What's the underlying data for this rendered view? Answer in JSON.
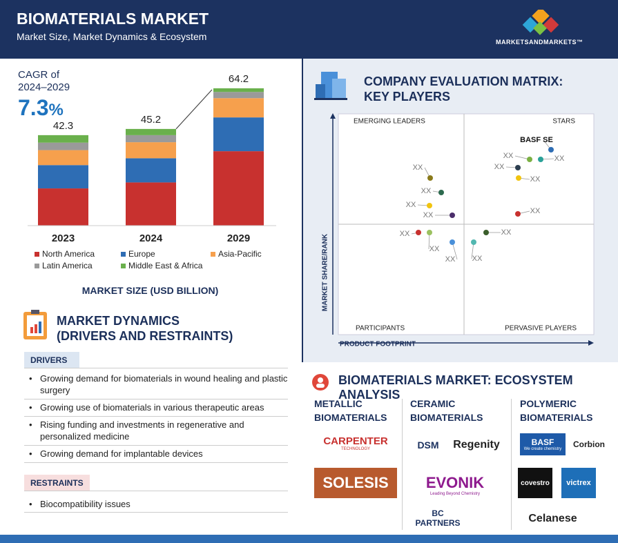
{
  "header": {
    "title": "BIOMATERIALS MARKET",
    "subtitle": "Market Size, Market Dynamics & Ecosystem",
    "brand": "MARKETSANDMARKETS™"
  },
  "cagr": {
    "label": "CAGR of",
    "period": "2024–2029",
    "value": "7.3",
    "unit": "%"
  },
  "chart_data": {
    "type": "bar",
    "stacked": true,
    "categories": [
      "2023",
      "2024",
      "2029"
    ],
    "totals": [
      42.3,
      45.2,
      64.2
    ],
    "series": [
      {
        "name": "North America",
        "color": "#c8312f",
        "values": [
          17.4,
          20.2,
          34.8
        ]
      },
      {
        "name": "Europe",
        "color": "#2e6db4",
        "values": [
          10.9,
          11.3,
          15.8
        ]
      },
      {
        "name": "Asia-Pacific",
        "color": "#f6a04d",
        "values": [
          7.0,
          7.5,
          9.0
        ]
      },
      {
        "name": "Latin America",
        "color": "#9a9a9a",
        "values": [
          3.5,
          3.3,
          2.9
        ]
      },
      {
        "name": "Middle East & Africa",
        "color": "#6ab04c",
        "values": [
          3.5,
          2.9,
          1.7
        ]
      }
    ],
    "xlabel": "MARKET SIZE (USD BILLION)"
  },
  "matrix": {
    "title": "COMPANY EVALUATION MATRIX:",
    "title2": "KEY PLAYERS",
    "quadrants": [
      "EMERGING LEADERS",
      "STARS",
      "PARTICIPANTS",
      "PERVASIVE PLAYERS"
    ],
    "y_axis": "MARKET SHARE/RANK",
    "x_axis": "PRODUCT FOOTPRINT",
    "points": [
      "BASF SE",
      "XX",
      "XX",
      "XX",
      "XX",
      "XX",
      "XX",
      "XX",
      "XX",
      "XX",
      "XX",
      "XX",
      "XX",
      "XX",
      "XX"
    ]
  },
  "dynamics": {
    "title": "MARKET DYNAMICS",
    "title2": "(DRIVERS AND RESTRAINTS)",
    "drivers_label": "DRIVERS",
    "drivers": [
      "Growing demand for biomaterials in wound healing and plastic surgery",
      "Growing use of biomaterials in various therapeutic areas",
      "Rising funding and investments in regenerative and personalized medicine",
      "Growing demand for implantable devices"
    ],
    "restraints_label": "RESTRAINTS",
    "restraints": [
      "Biocompatibility issues"
    ]
  },
  "ecosystem": {
    "title": "BIOMATERIALS MARKET: ECOSYSTEM ANALYSIS",
    "columns": [
      {
        "name": "METALLIC BIOMATERIALS",
        "companies": [
          {
            "name": "CARPENTER",
            "tagline": "TECHNOLOGY"
          },
          {
            "name": "SOLESIS"
          }
        ]
      },
      {
        "name": "CERAMIC BIOMATERIALS",
        "companies": [
          {
            "name": "DSM"
          },
          {
            "name": "Regenity"
          },
          {
            "name": "EVONIK",
            "tagline": "Leading Beyond Chemistry"
          },
          {
            "name": "BC PARTNERS"
          }
        ]
      },
      {
        "name": "POLYMERIC BIOMATERIALS",
        "companies": [
          {
            "name": "BASF",
            "tagline": "We create chemistry"
          },
          {
            "name": "Corbion"
          },
          {
            "name": "covestro"
          },
          {
            "name": "victrex"
          },
          {
            "name": "Celanese"
          }
        ]
      }
    ]
  }
}
